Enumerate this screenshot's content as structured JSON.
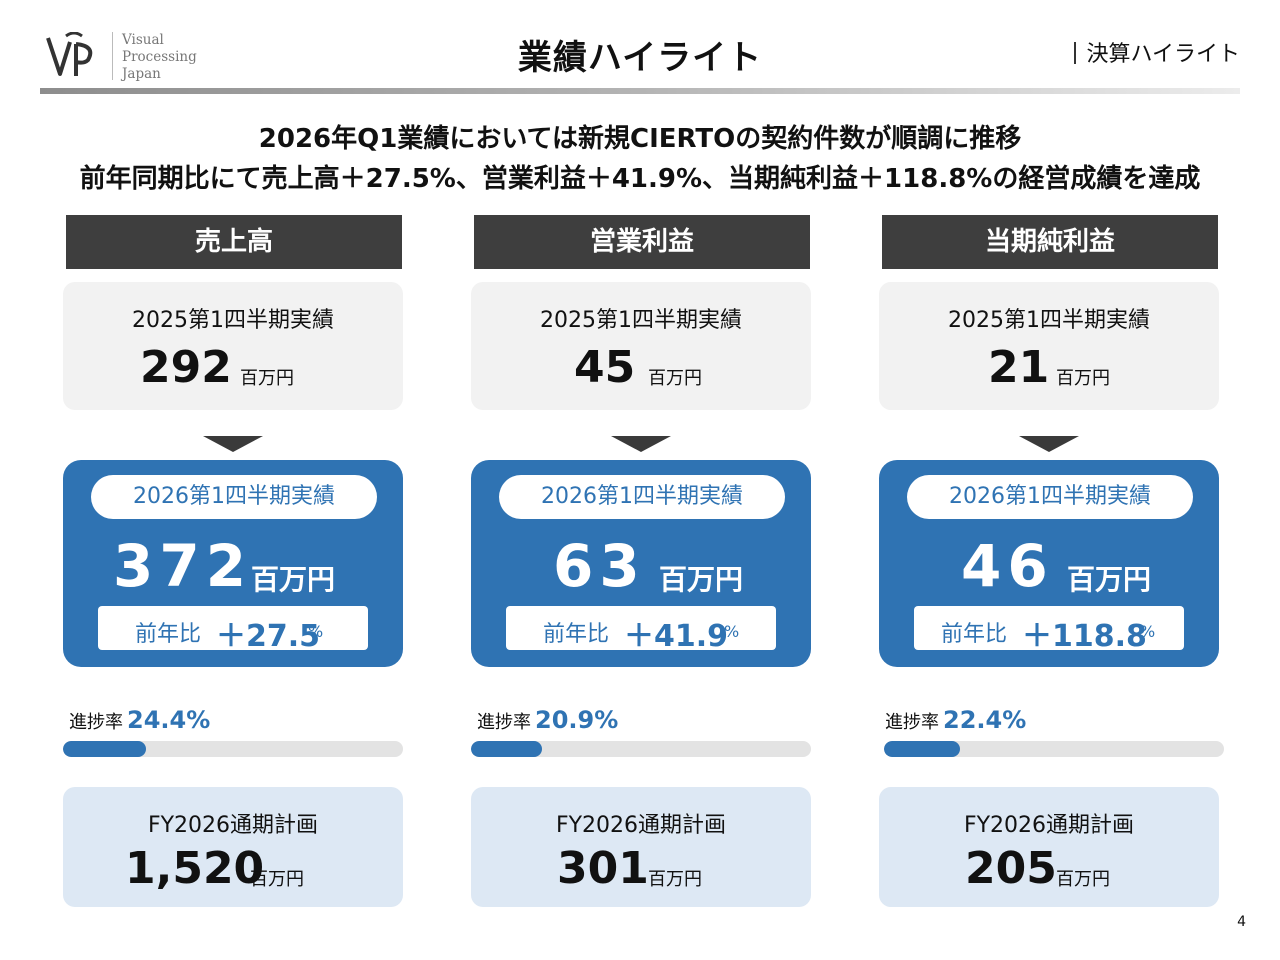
{
  "header": {
    "logo_lines": [
      "Visual",
      "Processing",
      "Japan"
    ],
    "title": "業績ハイライト",
    "section": "決算ハイライト"
  },
  "summary": {
    "line1": "2026年Q1業績においては新規CIERTOの契約件数が順調に推移",
    "line2": "前年同期比にて売上高＋27.5%、営業利益＋41.9%、当期純利益＋118.8%の経営成績を達成"
  },
  "unit": "百万円",
  "columns": [
    {
      "title": "売上高",
      "prev_label": "2025第1四半期実績",
      "prev_value": "292",
      "cur_label": "2026第1四半期実績",
      "cur_value": "372",
      "yoy_label": "前年比",
      "yoy_value": "＋27.5",
      "yoy_pct": "%",
      "progress_label": "進捗率",
      "progress_text": "24.4%",
      "progress_value": 24.4,
      "plan_label": "FY2026通期計画",
      "plan_value": "1,520"
    },
    {
      "title": "営業利益",
      "prev_label": "2025第1四半期実績",
      "prev_value": "45",
      "cur_label": "2026第1四半期実績",
      "cur_value": "63",
      "yoy_label": "前年比",
      "yoy_value": "＋41.9",
      "yoy_pct": "%",
      "progress_label": "進捗率",
      "progress_text": "20.9%",
      "progress_value": 20.9,
      "plan_label": "FY2026通期計画",
      "plan_value": "301"
    },
    {
      "title": "当期純利益",
      "prev_label": "2025第1四半期実績",
      "prev_value": "21",
      "cur_label": "2026第1四半期実績",
      "cur_value": "46",
      "yoy_label": "前年比",
      "yoy_value": "＋118.8",
      "yoy_pct": "%",
      "progress_label": "進捗率",
      "progress_text": "22.4%",
      "progress_value": 22.4,
      "plan_label": "FY2026通期計画",
      "plan_value": "205"
    }
  ],
  "page_number": "4",
  "colors": {
    "accent": "#2f73b3",
    "header_dark": "#3e3e3e",
    "card_gray": "#f2f2f2",
    "card_blue_light": "#dde8f4"
  }
}
